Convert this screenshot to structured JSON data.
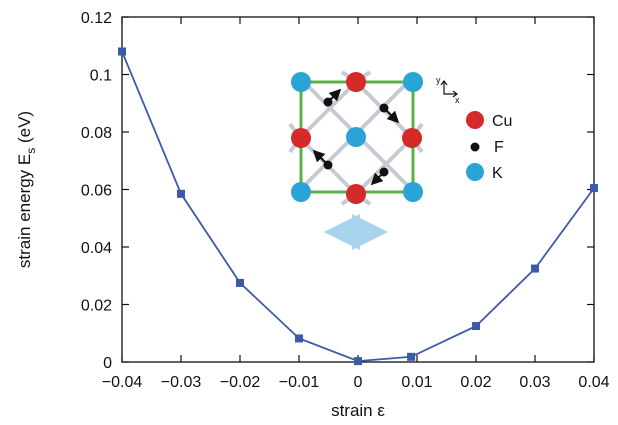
{
  "chart_data": {
    "type": "line",
    "xlabel": "strain ε",
    "ylabel": "strain energy E",
    "ylabel_subscript": "s",
    "ylabel_unit": "(eV)",
    "xlim": [
      -0.04,
      0.04
    ],
    "ylim": [
      0,
      0.12
    ],
    "xticks": [
      -0.04,
      -0.03,
      -0.02,
      -0.01,
      0,
      0.01,
      0.02,
      0.03,
      0.04
    ],
    "xtick_labels": [
      "−0.04",
      "−0.03",
      "−0.02",
      "−0.01",
      "0",
      "0.01",
      "0.02",
      "0.03",
      "0.04"
    ],
    "yticks": [
      0,
      0.02,
      0.04,
      0.06,
      0.08,
      0.1,
      0.12
    ],
    "ytick_labels": [
      "0",
      "0.02",
      "0.04",
      "0.06",
      "0.08",
      "0.1",
      "0.12"
    ],
    "grid": false,
    "series": [
      {
        "color": "#3d5aa8",
        "marker": "square",
        "x": [
          -0.04,
          -0.03,
          -0.02,
          -0.01,
          0,
          0.009,
          0.02,
          0.03,
          0.04
        ],
        "y": [
          0.108,
          0.0585,
          0.0275,
          0.0082,
          0.0003,
          0.0018,
          0.0125,
          0.0325,
          0.0605
        ]
      }
    ]
  },
  "inset": {
    "axes": {
      "y": "y",
      "x": "x"
    },
    "legend": [
      {
        "label": "Cu",
        "color": "#d42a2a"
      },
      {
        "label": "F",
        "color": "#111111"
      },
      {
        "label": "K",
        "color": "#2aa3d6"
      }
    ],
    "frame_color": "#5bb04b",
    "arrow_color": "#a8d4ef"
  }
}
